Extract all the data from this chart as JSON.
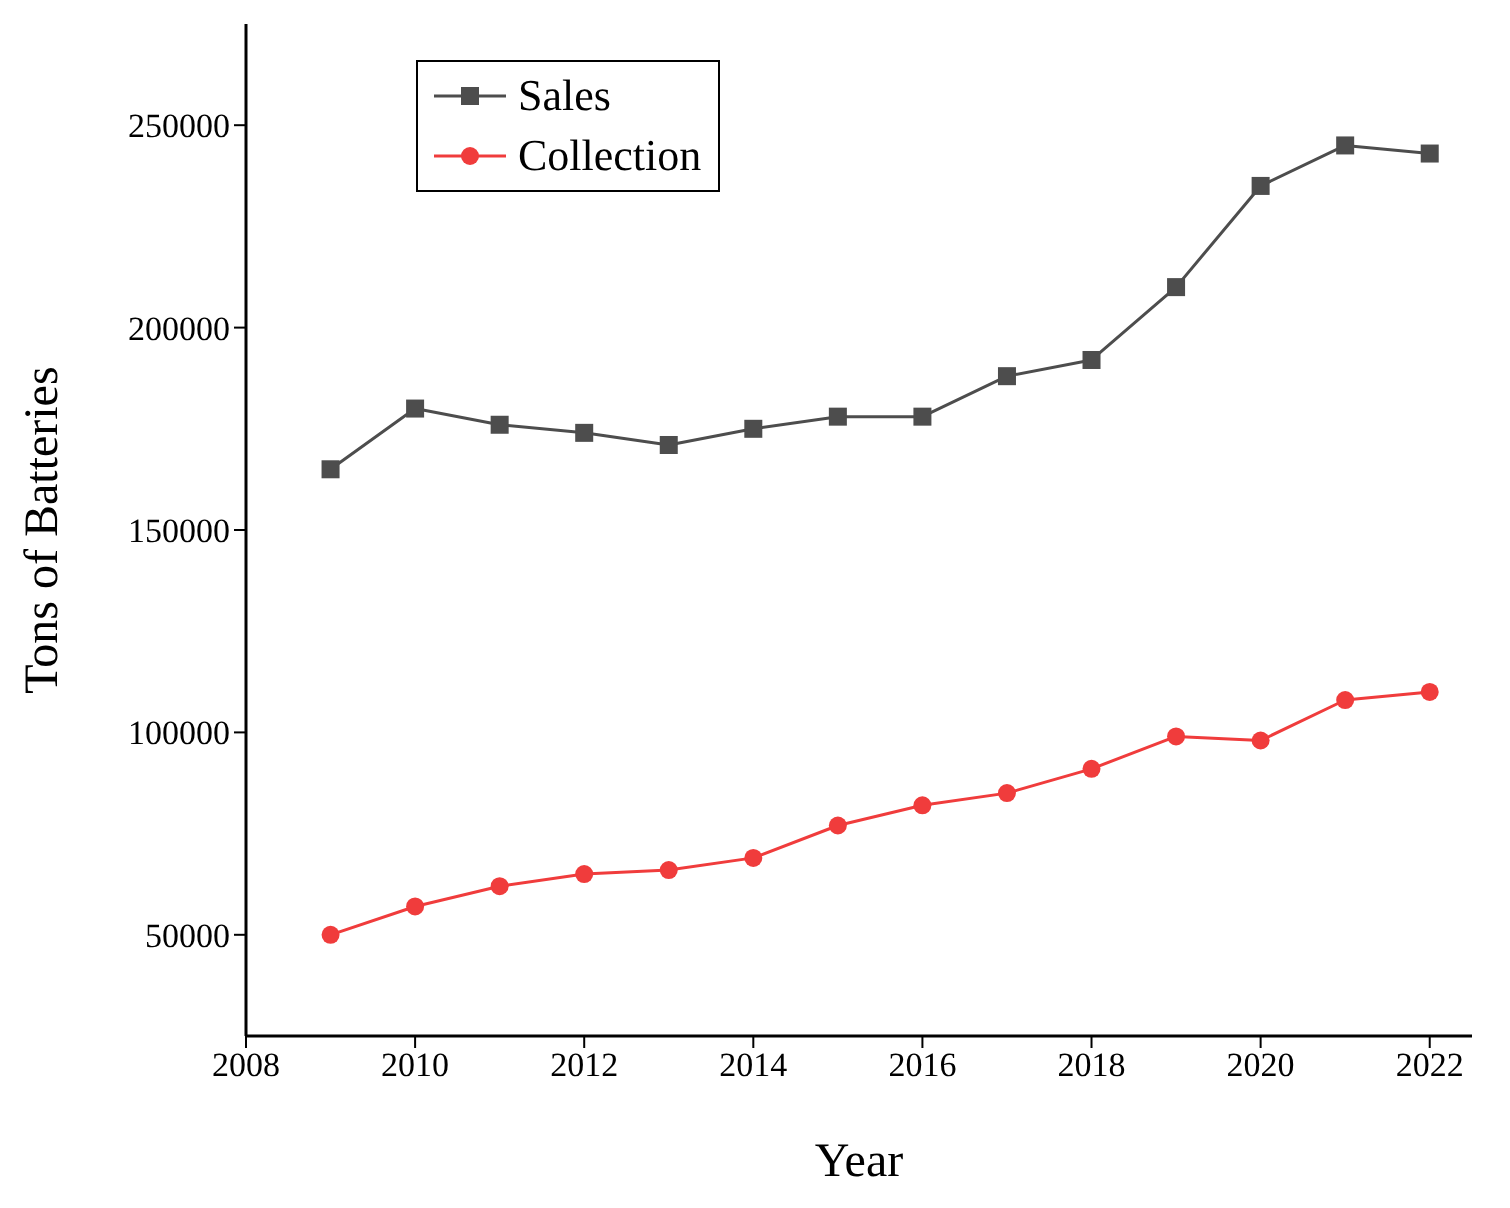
{
  "chart_data": {
    "type": "line",
    "xlabel": "Year",
    "ylabel": "Tons of Batteries",
    "x": [
      2009,
      2010,
      2011,
      2012,
      2013,
      2014,
      2015,
      2016,
      2017,
      2018,
      2019,
      2020,
      2021,
      2022
    ],
    "series": [
      {
        "name": "Sales",
        "color": "#4d4d4d",
        "marker": "square",
        "values": [
          165000,
          180000,
          176000,
          174000,
          171000,
          175000,
          178000,
          178000,
          188000,
          192000,
          210000,
          235000,
          245000,
          243000
        ]
      },
      {
        "name": "Collection",
        "color": "#f03c3c",
        "marker": "circle",
        "values": [
          50000,
          57000,
          62000,
          65000,
          66000,
          69000,
          77000,
          82000,
          85000,
          91000,
          99000,
          98000,
          108000,
          110000
        ]
      }
    ],
    "xlim": [
      2008,
      2022.5
    ],
    "xticks": [
      2008,
      2010,
      2012,
      2014,
      2016,
      2018,
      2020,
      2022
    ],
    "ylim": [
      25000,
      275000
    ],
    "yticks": [
      50000,
      100000,
      150000,
      200000,
      250000
    ],
    "grid": false,
    "legend": "top left",
    "line_style": "solid"
  }
}
